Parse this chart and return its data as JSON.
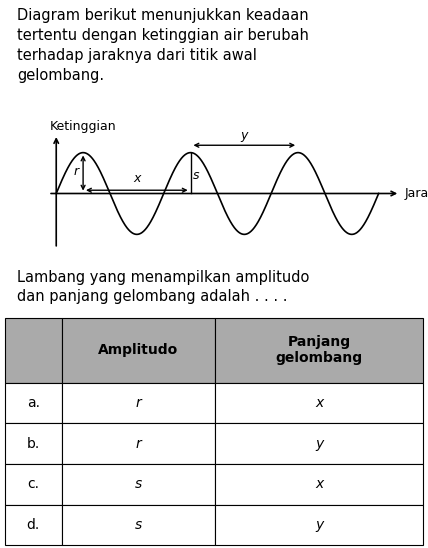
{
  "title_text": "Diagram berikut menunjukkan keadaan\ntertentu dengan ketinggian air berubah\nterhadap jaraknya dari titik awal\ngelombang.",
  "ylabel": "Ketinggian",
  "xlabel": "Jarak",
  "bottom_text": "Lambang yang menampilkan amplitudo\ndan panjang gelombang adalah . . . .",
  "table_header_col1": "",
  "table_header_col2": "Amplitudo",
  "table_header_col3": "Panjang\ngelombang",
  "table_rows": [
    [
      "a.",
      "r",
      "x"
    ],
    [
      "b.",
      "r",
      "y"
    ],
    [
      "c.",
      "s",
      "x"
    ],
    [
      "d.",
      "s",
      "y"
    ]
  ],
  "header_color": "#aaaaaa",
  "row_color": "#ffffff",
  "wave_color": "#000000",
  "background_color": "#ffffff",
  "amplitude": 1.0,
  "wavelength": 2.0,
  "num_cycles": 3.0,
  "title_fontsize": 10.5,
  "wave_label_fontsize": 9,
  "annotation_fontsize": 9,
  "table_fontsize": 10
}
